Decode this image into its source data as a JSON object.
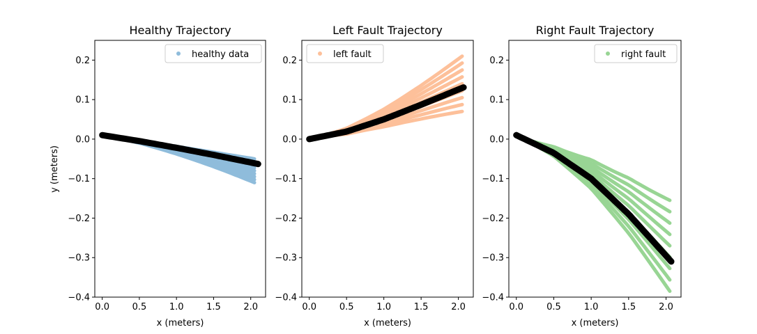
{
  "figure": {
    "ylabel": "y (meters)",
    "xlabel": "x (meters)"
  },
  "chart_data": [
    {
      "type": "scatter",
      "title": "Healthy Trajectory",
      "xlabel": "x (meters)",
      "ylabel": "y (meters)",
      "xlim": [
        -0.1,
        2.2
      ],
      "ylim": [
        -0.4,
        0.25
      ],
      "xticks": [
        "0.0",
        "0.5",
        "1.0",
        "1.5",
        "2.0"
      ],
      "yticks": [
        "0.2",
        "0.1",
        "0.0",
        "−0.1",
        "−0.2",
        "−0.3",
        "−0.4"
      ],
      "legend": {
        "label": "healthy data",
        "position": "top-right"
      },
      "scatter_color": "#8fbcdb",
      "reference_color": "#000000",
      "series": [
        {
          "name": "healthy data",
          "end_y_range": [
            -0.11,
            -0.05
          ],
          "end_x": 2.05
        },
        {
          "reference_line": true,
          "x": [
            0.0,
            0.5,
            1.0,
            1.5,
            2.1
          ],
          "y": [
            0.01,
            -0.005,
            -0.022,
            -0.04,
            -0.063
          ]
        }
      ]
    },
    {
      "type": "scatter",
      "title": "Left Fault Trajectory",
      "xlabel": "x (meters)",
      "ylabel": "",
      "xlim": [
        -0.1,
        2.2
      ],
      "ylim": [
        -0.4,
        0.25
      ],
      "xticks": [
        "0.0",
        "0.5",
        "1.0",
        "1.5",
        "2.0"
      ],
      "yticks": [
        "0.2",
        "0.1",
        "0.0",
        "−0.1",
        "−0.2",
        "−0.3",
        "−0.4"
      ],
      "legend": {
        "label": "left fault",
        "position": "top-left"
      },
      "scatter_color": "#fdc09a",
      "reference_color": "#000000",
      "series": [
        {
          "name": "left fault",
          "end_y_range": [
            0.07,
            0.21
          ],
          "end_x": 2.05
        },
        {
          "reference_line": true,
          "x": [
            0.0,
            0.5,
            1.0,
            1.5,
            2.07
          ],
          "y": [
            0.0,
            0.019,
            0.05,
            0.087,
            0.131
          ]
        }
      ]
    },
    {
      "type": "scatter",
      "title": "Right Fault Trajectory",
      "xlabel": "x (meters)",
      "ylabel": "",
      "xlim": [
        -0.1,
        2.2
      ],
      "ylim": [
        -0.4,
        0.25
      ],
      "xticks": [
        "0.0",
        "0.5",
        "1.0",
        "1.5",
        "2.0"
      ],
      "yticks": [
        "0.2",
        "0.1",
        "0.0",
        "−0.1",
        "−0.2",
        "−0.3",
        "−0.4"
      ],
      "legend": {
        "label": "right fault",
        "position": "top-right"
      },
      "scatter_color": "#98d594",
      "reference_color": "#000000",
      "series": [
        {
          "name": "right fault",
          "end_y_range": [
            -0.385,
            -0.155
          ],
          "end_x": 2.05
        },
        {
          "reference_line": true,
          "x": [
            0.0,
            0.5,
            1.0,
            1.5,
            2.07
          ],
          "y": [
            0.01,
            -0.035,
            -0.1,
            -0.19,
            -0.31
          ]
        }
      ]
    }
  ]
}
